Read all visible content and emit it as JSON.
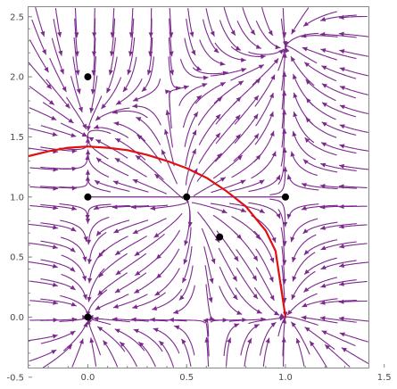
{
  "chart_data": {
    "type": "streamplot",
    "title": "",
    "xlabel": "",
    "ylabel": "",
    "xlim": [
      -0.3,
      1.42
    ],
    "ylim": [
      -0.42,
      2.58
    ],
    "x_ticks": [
      "0.0",
      "0.5",
      "1.0",
      "1.5"
    ],
    "y_ticks": [
      "-0.5",
      "0.0",
      "0.5",
      "1.0",
      "1.5",
      "2.0",
      "2.5"
    ],
    "x_tick_values": [
      0.0,
      0.5,
      1.0,
      1.5
    ],
    "y_tick_values": [
      -0.5,
      0.0,
      0.5,
      1.0,
      1.5,
      2.0,
      2.5
    ],
    "fixed_points": [
      {
        "x": 0.0,
        "y": 0.0
      },
      {
        "x": 0.0,
        "y": 1.0
      },
      {
        "x": 0.0,
        "y": 2.0
      },
      {
        "x": 0.5,
        "y": 1.0
      },
      {
        "x": 1.0,
        "y": 1.0
      },
      {
        "x": 0.667,
        "y": 0.667
      }
    ],
    "red_curve": {
      "description_points": [
        [
          -0.3,
          1.34
        ],
        [
          -0.2,
          1.38
        ],
        [
          -0.1,
          1.41
        ],
        [
          0.0,
          1.42
        ],
        [
          0.1,
          1.41
        ],
        [
          0.2,
          1.39
        ],
        [
          0.3,
          1.35
        ],
        [
          0.4,
          1.3
        ],
        [
          0.5,
          1.24
        ],
        [
          0.6,
          1.16
        ],
        [
          0.7,
          1.05
        ],
        [
          0.8,
          0.92
        ],
        [
          0.9,
          0.72
        ],
        [
          0.95,
          0.55
        ],
        [
          1.0,
          0.0
        ]
      ]
    },
    "colors": {
      "stream": "#7b2a8c",
      "curve": "#e01010",
      "point": "#000000",
      "frame": "#888888"
    }
  }
}
